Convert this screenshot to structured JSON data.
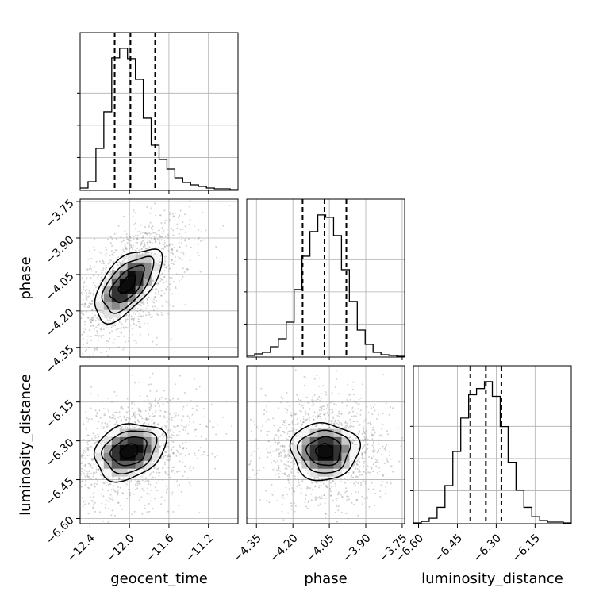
{
  "chart_data": {
    "type": "corner",
    "parameters": [
      "geocent_time",
      "phase",
      "luminosity_distance"
    ],
    "axis_labels": {
      "geocent_time": "geocent_time",
      "phase": "phase",
      "luminosity_distance": "luminosity_distance"
    },
    "ranges": {
      "geocent_time": [
        -12.5,
        -10.9
      ],
      "phase": [
        -4.39,
        -3.74
      ],
      "luminosity_distance": [
        -6.62,
        -6.01
      ]
    },
    "ticks": {
      "geocent_time": [
        -12.4,
        -12.0,
        -11.6,
        -11.2
      ],
      "phase": [
        -4.35,
        -4.2,
        -4.05,
        -3.9,
        -3.75
      ],
      "luminosity_distance": [
        -6.6,
        -6.45,
        -6.3,
        -6.15
      ]
    },
    "tick_labels": {
      "geocent_time": [
        "−12.4",
        "−12.0",
        "−11.6",
        "−11.2"
      ],
      "phase": [
        "−4.35",
        "−4.20",
        "−4.05",
        "−3.90",
        "−3.75"
      ],
      "luminosity_distance": [
        "−6.60",
        "−6.45",
        "−6.30",
        "−6.15"
      ]
    },
    "quantiles": {
      "geocent_time": [
        -12.15,
        -11.99,
        -11.74
      ],
      "phase": [
        -4.16,
        -4.07,
        -3.98
      ],
      "luminosity_distance": [
        -6.4,
        -6.34,
        -6.28
      ]
    },
    "histograms": {
      "geocent_time": {
        "bin_edges": [
          -12.5,
          -12.42,
          -12.34,
          -12.26,
          -12.18,
          -12.1,
          -12.02,
          -11.94,
          -11.86,
          -11.78,
          -11.7,
          -11.62,
          -11.54,
          -11.46,
          -11.38,
          -11.3,
          -11.22,
          -11.14,
          -11.06,
          -10.98,
          -10.9
        ],
        "counts": [
          2,
          10,
          52,
          98,
          166,
          178,
          165,
          139,
          90,
          56,
          38,
          26,
          15,
          9,
          6,
          4,
          2,
          1,
          1,
          0
        ]
      },
      "phase": {
        "bin_edges": [
          -4.39,
          -4.3575,
          -4.325,
          -4.2925,
          -4.26,
          -4.2275,
          -4.195,
          -4.1625,
          -4.13,
          -4.0975,
          -4.065,
          -4.0325,
          -4.0,
          -3.9675,
          -3.935,
          -3.9025,
          -3.87,
          -3.8375,
          -3.805,
          -3.7725,
          -3.74
        ],
        "counts": [
          1,
          3,
          5,
          12,
          22,
          43,
          84,
          126,
          157,
          178,
          175,
          152,
          109,
          69,
          33,
          15,
          5,
          2,
          1,
          0
        ]
      },
      "luminosity_distance": {
        "bin_edges": [
          -6.62,
          -6.5895,
          -6.559,
          -6.5285,
          -6.498,
          -6.4675,
          -6.437,
          -6.4065,
          -6.376,
          -6.3455,
          -6.315,
          -6.2845,
          -6.254,
          -6.2235,
          -6.193,
          -6.1625,
          -6.132,
          -6.1015,
          -6.071,
          -6.0405,
          -6.01
        ],
        "counts": [
          0,
          2,
          6,
          20,
          48,
          92,
          135,
          165,
          173,
          182,
          163,
          124,
          78,
          42,
          20,
          8,
          3,
          1,
          1,
          0
        ]
      }
    },
    "joint": [
      {
        "x": "geocent_time",
        "y": "phase",
        "mean": [
          -12.02,
          -4.09
        ],
        "sd": [
          0.17,
          0.075
        ],
        "corr": 0.6
      },
      {
        "x": "geocent_time",
        "y": "luminosity_distance",
        "mean": [
          -12.0,
          -6.34
        ],
        "sd": [
          0.18,
          0.055
        ],
        "corr": 0.25
      },
      {
        "x": "phase",
        "y": "luminosity_distance",
        "mean": [
          -4.07,
          -6.34
        ],
        "sd": [
          0.07,
          0.055
        ],
        "corr": 0.0
      }
    ],
    "grid": true
  }
}
